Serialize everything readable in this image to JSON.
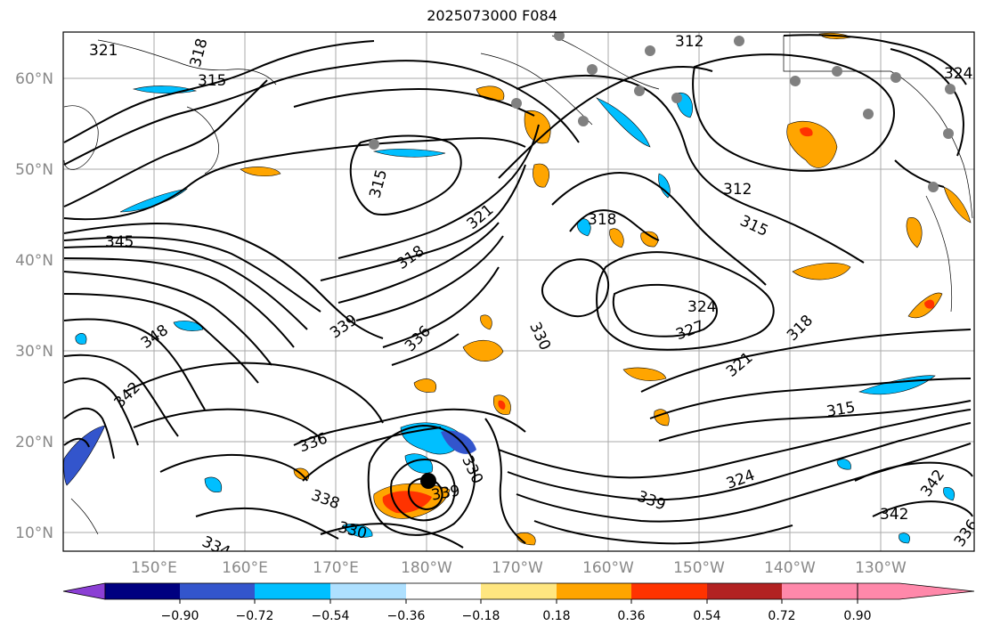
{
  "title": "2025073000 F084",
  "map": {
    "lat_labels": [
      "60°N",
      "50°N",
      "40°N",
      "30°N",
      "20°N",
      "10°N"
    ],
    "lon_labels": [
      "150°E",
      "160°E",
      "170°E",
      "180°W",
      "170°W",
      "160°W",
      "150°W",
      "140°W",
      "130°W"
    ],
    "contour_labels": [
      "321",
      "318",
      "315",
      "315",
      "318",
      "321",
      "312",
      "318",
      "324",
      "345",
      "348",
      "339",
      "336",
      "342",
      "336",
      "330",
      "339",
      "330",
      "324",
      "327",
      "321",
      "318",
      "315",
      "312",
      "315",
      "324",
      "339",
      "342",
      "342",
      "336",
      "338",
      "330",
      "334"
    ],
    "colors": {
      "contour": "#000000",
      "grid": "#aaaaaa",
      "coast": "#000000",
      "station": "#808080",
      "center_marker": "#000000"
    }
  },
  "colorbar": {
    "ticks": [
      "−0.90",
      "−0.72",
      "−0.54",
      "−0.36",
      "−0.18",
      "0.18",
      "0.36",
      "0.54",
      "0.72",
      "0.90"
    ],
    "colors": [
      "#8b3fd4",
      "#000080",
      "#3355cc",
      "#00bfff",
      "#aee0ff",
      "#ffffff",
      "#ffe680",
      "#ffa500",
      "#ff3300",
      "#b22222",
      "#ff88aa"
    ]
  }
}
